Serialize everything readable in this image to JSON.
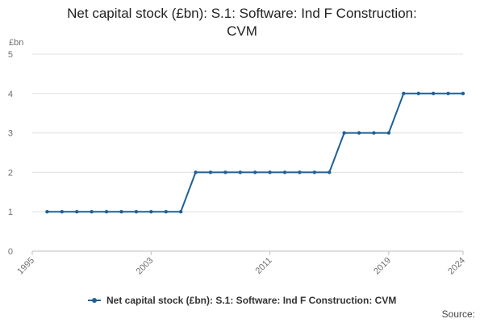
{
  "chart_data": {
    "type": "line",
    "title_lines": [
      "Net capital stock (£bn): S.1: Software: Ind F Construction:",
      "CVM"
    ],
    "ylabel": "£bn",
    "ylim": [
      0,
      5
    ],
    "yticks": [
      0,
      1,
      2,
      3,
      4,
      5
    ],
    "xlim": [
      1995,
      2024
    ],
    "xticks": [
      "1995",
      "2003",
      "2011",
      "2019",
      "2024"
    ],
    "grid": true,
    "legend_position": "bottom",
    "series": [
      {
        "name": "Net capital stock (£bn): S.1: Software: Ind F Construction: CVM",
        "color": "#206095",
        "x": [
          1996,
          1997,
          1998,
          1999,
          2000,
          2001,
          2002,
          2003,
          2004,
          2005,
          2006,
          2007,
          2008,
          2009,
          2010,
          2011,
          2012,
          2013,
          2014,
          2015,
          2016,
          2017,
          2018,
          2019,
          2020,
          2021,
          2022,
          2023,
          2024
        ],
        "values": [
          1,
          1,
          1,
          1,
          1,
          1,
          1,
          1,
          1,
          1,
          2,
          2,
          2,
          2,
          2,
          2,
          2,
          2,
          2,
          2,
          3,
          3,
          3,
          3,
          4,
          4,
          4,
          4,
          4
        ]
      }
    ]
  },
  "source_label": "Source:"
}
